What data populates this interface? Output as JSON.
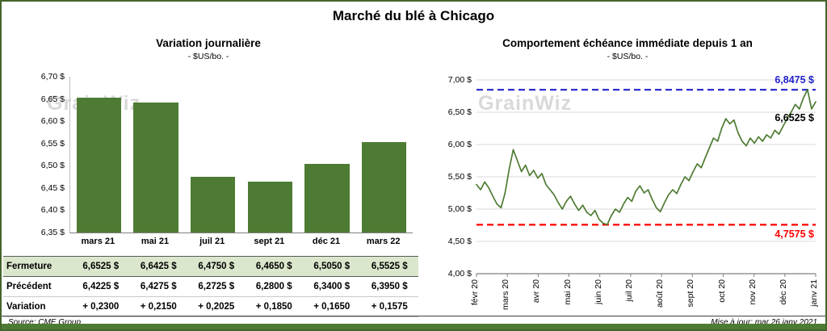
{
  "title": "Marché du blé à Chicago",
  "watermark": "GrainWiz",
  "left_chart": {
    "title": "Variation journalière",
    "subtitle": "- $US/bo. -"
  },
  "right_chart": {
    "title": "Comportement échéance immédiate depuis 1 an",
    "subtitle": "- $US/bo. -"
  },
  "table": {
    "rows": [
      {
        "label": "Fermeture",
        "values": [
          "6,6525 $",
          "6,6425 $",
          "6,4750 $",
          "6,4650 $",
          "6,5050 $",
          "6,5525 $"
        ]
      },
      {
        "label": "Précédent",
        "values": [
          "6,4225 $",
          "6,4275 $",
          "6,2725 $",
          "6,2800 $",
          "6,3400 $",
          "6,3950 $"
        ]
      },
      {
        "label": "Variation",
        "values": [
          "+ 0,2300",
          "+ 0,2150",
          "+ 0,2025",
          "+ 0,1850",
          "+ 0,1650",
          "+ 0,1575"
        ]
      }
    ]
  },
  "footer": {
    "source": "Source: CME Group",
    "updated": "Mise à jour: mar 26 janv 2021"
  },
  "chart_data": [
    {
      "type": "bar",
      "title": "Variation journalière",
      "subtitle": "- $US/bo. -",
      "categories": [
        "mars 21",
        "mai 21",
        "juil 21",
        "sept 21",
        "déc 21",
        "mars 22"
      ],
      "values": [
        6.6525,
        6.6425,
        6.475,
        6.465,
        6.505,
        6.5525
      ],
      "previous": [
        6.4225,
        6.4275,
        6.2725,
        6.28,
        6.34,
        6.395
      ],
      "variation": [
        0.23,
        0.215,
        0.2025,
        0.185,
        0.165,
        0.1575
      ],
      "ylim": [
        6.35,
        6.7
      ],
      "ytick_step": 0.05,
      "bar_color": "#4e7b33"
    },
    {
      "type": "line",
      "title": "Comportement échéance immédiate depuis 1 an",
      "subtitle": "- $US/bo. -",
      "x_labels": [
        "févr 20",
        "mars 20",
        "avr 20",
        "mai 20",
        "juin 20",
        "juil 20",
        "août 20",
        "sept 20",
        "oct 20",
        "nov 20",
        "déc 20",
        "janv 21"
      ],
      "values": [
        5.38,
        5.3,
        5.42,
        5.33,
        5.2,
        5.08,
        5.02,
        5.25,
        5.62,
        5.92,
        5.75,
        5.58,
        5.68,
        5.52,
        5.6,
        5.48,
        5.55,
        5.38,
        5.3,
        5.22,
        5.1,
        5.0,
        5.12,
        5.2,
        5.08,
        4.98,
        5.06,
        4.95,
        4.9,
        4.98,
        4.84,
        4.78,
        4.76,
        4.9,
        5.0,
        4.95,
        5.08,
        5.18,
        5.12,
        5.28,
        5.36,
        5.25,
        5.3,
        5.15,
        5.02,
        4.96,
        5.1,
        5.22,
        5.3,
        5.24,
        5.38,
        5.5,
        5.44,
        5.58,
        5.7,
        5.64,
        5.8,
        5.95,
        6.1,
        6.05,
        6.25,
        6.4,
        6.32,
        6.38,
        6.18,
        6.05,
        5.98,
        6.1,
        6.02,
        6.12,
        6.05,
        6.15,
        6.1,
        6.22,
        6.16,
        6.28,
        6.4,
        6.5,
        6.62,
        6.55,
        6.72,
        6.85,
        6.55,
        6.66
      ],
      "ylim": [
        4.0,
        7.0
      ],
      "ytick_step": 0.5,
      "line_color": "#4e7b33",
      "grid": true,
      "reference_lines": [
        {
          "value": 6.8475,
          "label": "6,8475 $",
          "color": "#2222cc",
          "position": "above"
        },
        {
          "value": 4.7575,
          "label": "4,7575 $",
          "color": "#ff0000",
          "position": "below"
        }
      ],
      "last_point": {
        "value": 6.6525,
        "label": "6,6525 $",
        "color": "#000000"
      }
    }
  ]
}
